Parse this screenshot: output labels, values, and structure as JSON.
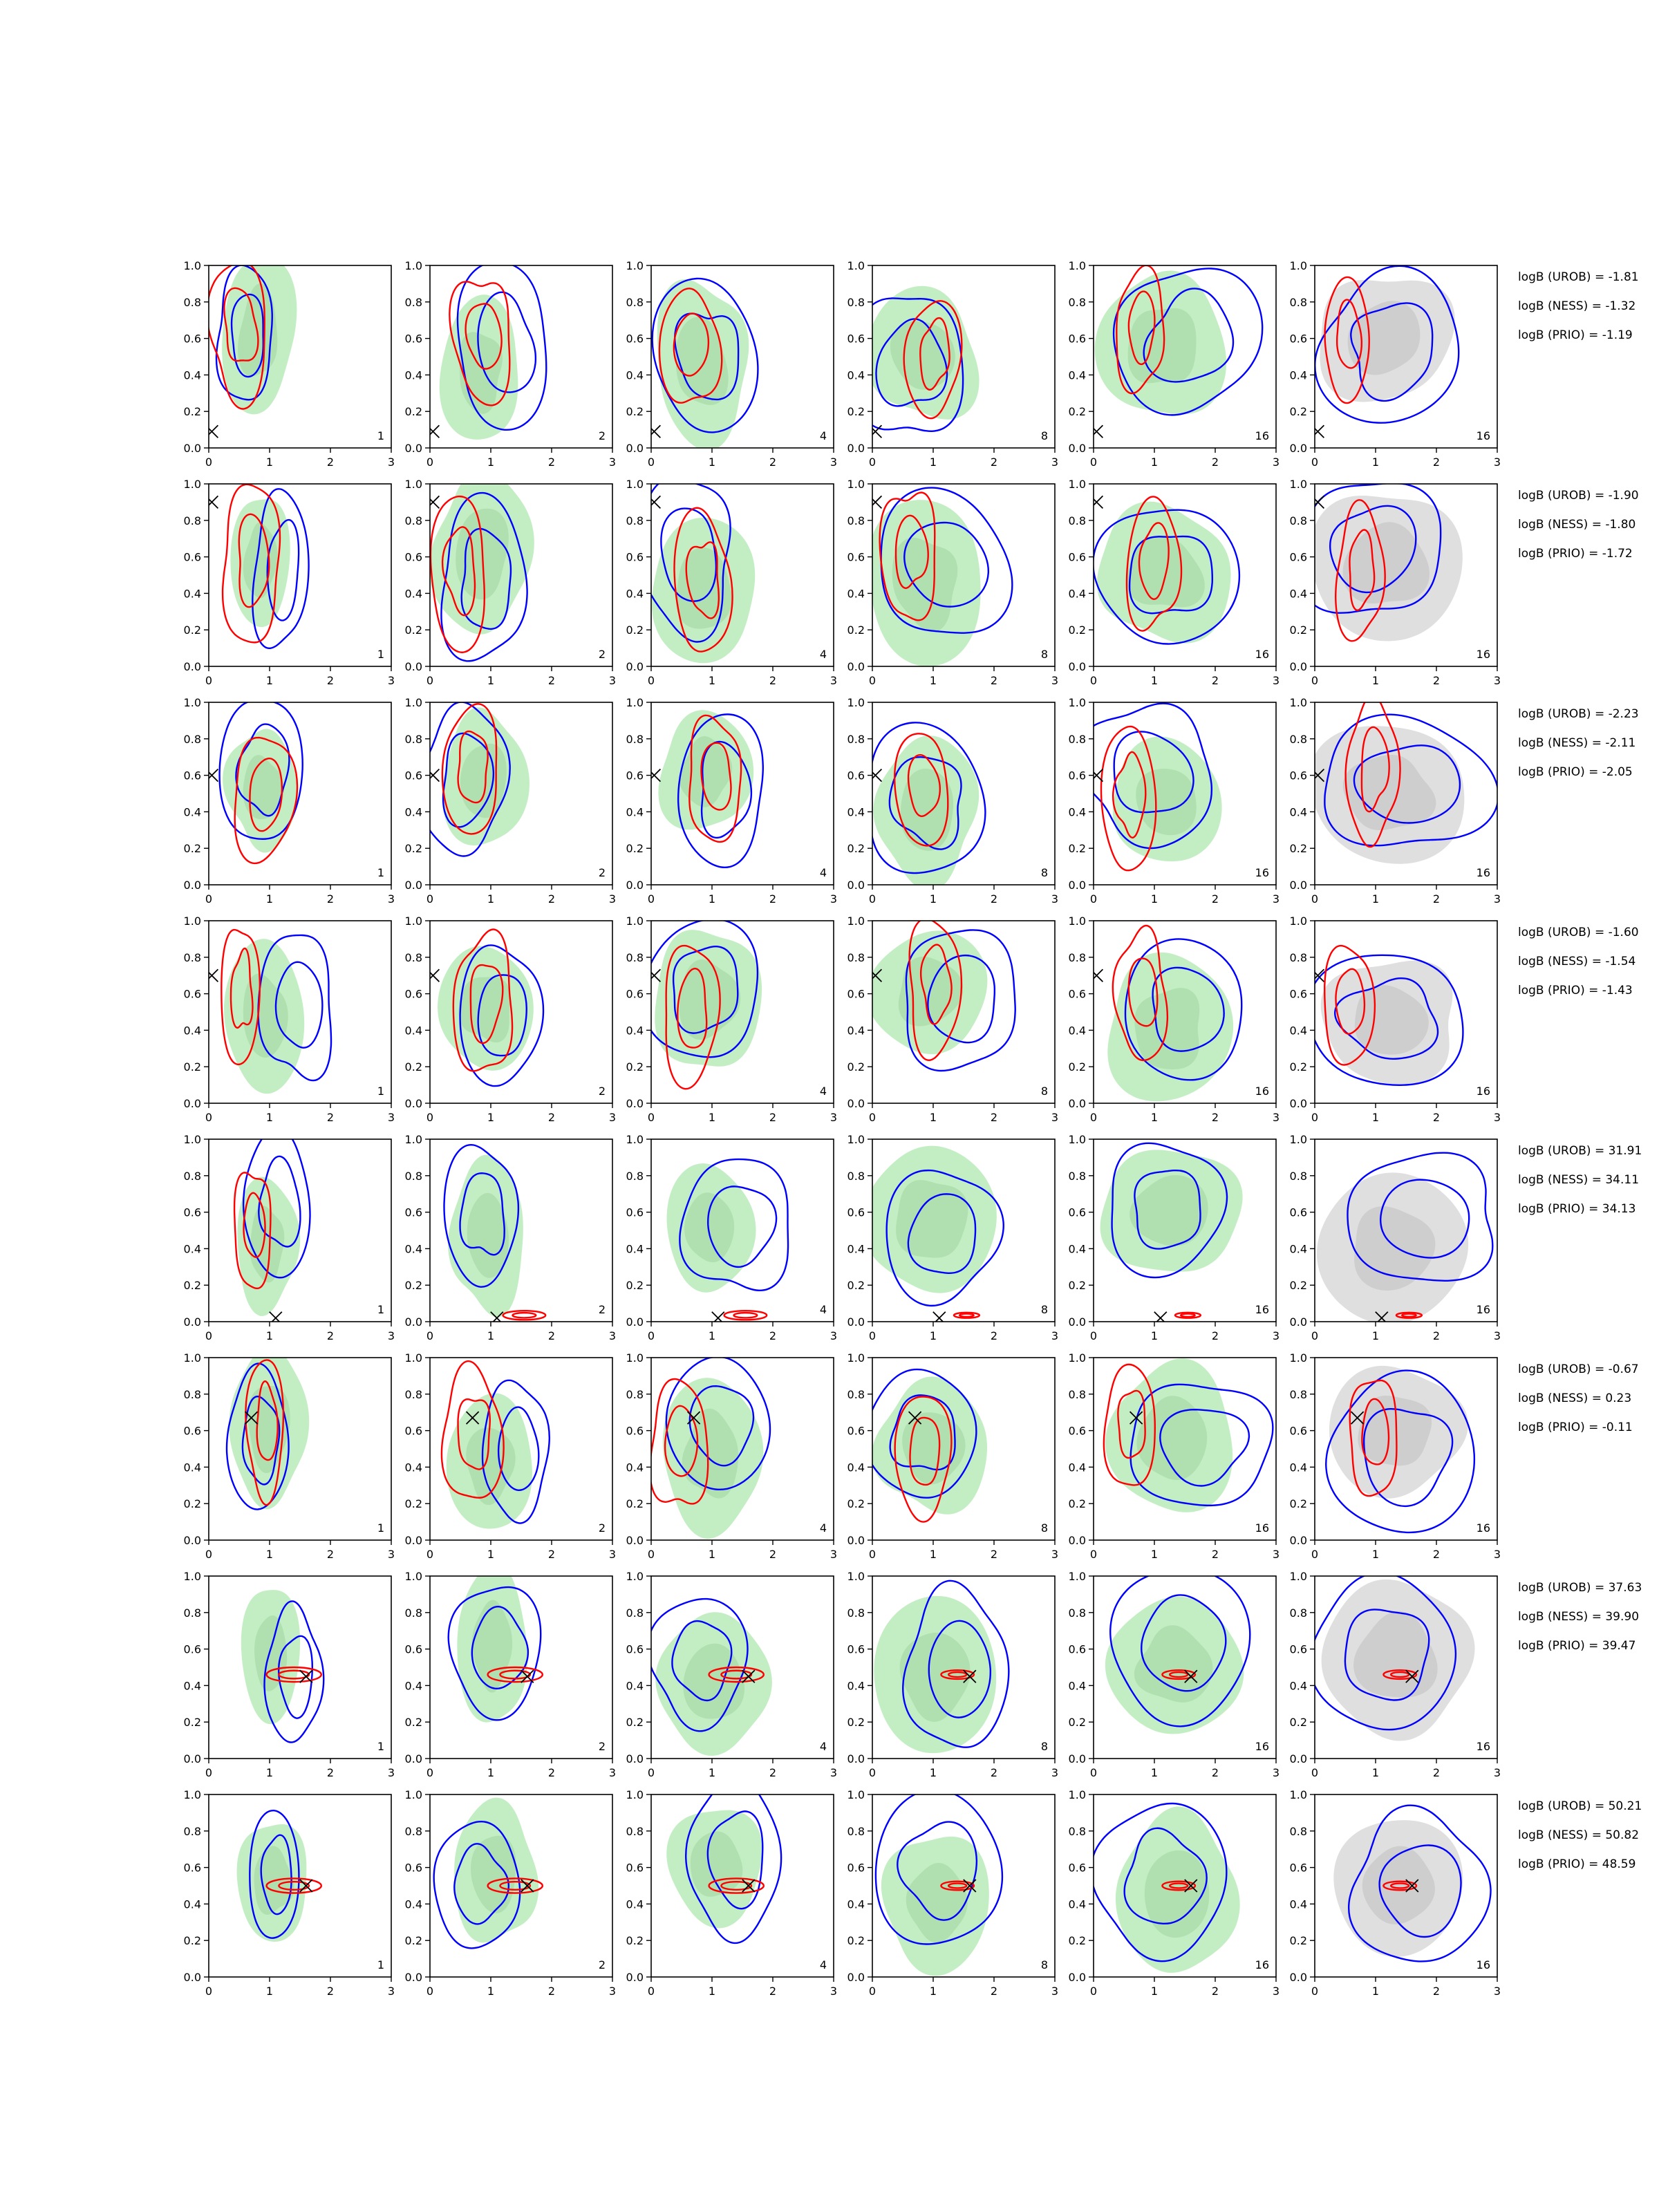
{
  "figure": {
    "panel_labels": [
      "1",
      "2",
      "4",
      "8",
      "16",
      "16"
    ],
    "rows": [
      {
        "annotations": [
          "logB (UROB) = -1.81",
          "logB (NESS) = -1.32",
          "logB (PRIO) = -1.19"
        ]
      },
      {
        "annotations": [
          "logB (UROB) = -1.90",
          "logB (NESS) = -1.80",
          "logB (PRIO) = -1.72"
        ]
      },
      {
        "annotations": [
          "logB (UROB) = -2.23",
          "logB (NESS) = -2.11",
          "logB (PRIO) = -2.05"
        ]
      },
      {
        "annotations": [
          "logB (UROB) = -1.60",
          "logB (NESS) = -1.54",
          "logB (PRIO) = -1.43"
        ]
      },
      {
        "annotations": [
          "logB (UROB) = 31.91",
          "logB (NESS) = 34.11",
          "logB (PRIO) = 34.13"
        ]
      },
      {
        "annotations": [
          "logB (UROB) = -0.67",
          "logB (NESS) = 0.23",
          "logB (PRIO) = -0.11"
        ]
      },
      {
        "annotations": [
          "logB (UROB) = 37.63",
          "logB (NESS) = 39.90",
          "logB (PRIO) = 39.47"
        ]
      },
      {
        "annotations": [
          "logB (UROB) = 50.21",
          "logB (NESS) = 50.82",
          "logB (PRIO) = 48.59"
        ]
      }
    ]
  },
  "chart_data": {
    "type": "contour-grid",
    "layout": "8 rows x 6 columns of 2-D density contour panels",
    "xlim": [
      0,
      3
    ],
    "ylim": [
      0,
      1
    ],
    "xticks": [
      "0",
      "1",
      "2",
      "3"
    ],
    "yticks": [
      "0.0",
      "0.2",
      "0.4",
      "0.6",
      "0.8",
      "1.0"
    ],
    "grid": false,
    "colors": {
      "blue": "#0000ff",
      "red": "#ff0000",
      "green_fill": "#b9ebb9",
      "gray_fill": "#d9d9d9",
      "marker": "#000000"
    },
    "true_points": [
      {
        "x": 0.05,
        "y": 0.09
      },
      {
        "x": 0.05,
        "y": 0.9
      },
      {
        "x": 0.05,
        "y": 0.6
      },
      {
        "x": 0.05,
        "y": 0.7
      },
      {
        "x": 1.1,
        "y": 0.02
      },
      {
        "x": 0.7,
        "y": 0.67
      },
      {
        "x": 1.6,
        "y": 0.45
      },
      {
        "x": 1.6,
        "y": 0.5
      }
    ],
    "narrow_posteriors": [
      {
        "row": 5,
        "from_col": 2,
        "center": [
          1.55,
          0.035
        ],
        "spread": [
          0.35,
          0.025
        ]
      },
      {
        "row": 7,
        "from_col": 1,
        "center": [
          1.4,
          0.46
        ],
        "spread": [
          0.45,
          0.04
        ]
      },
      {
        "row": 8,
        "from_col": 1,
        "center": [
          1.4,
          0.5
        ],
        "spread": [
          0.45,
          0.04
        ]
      }
    ]
  }
}
